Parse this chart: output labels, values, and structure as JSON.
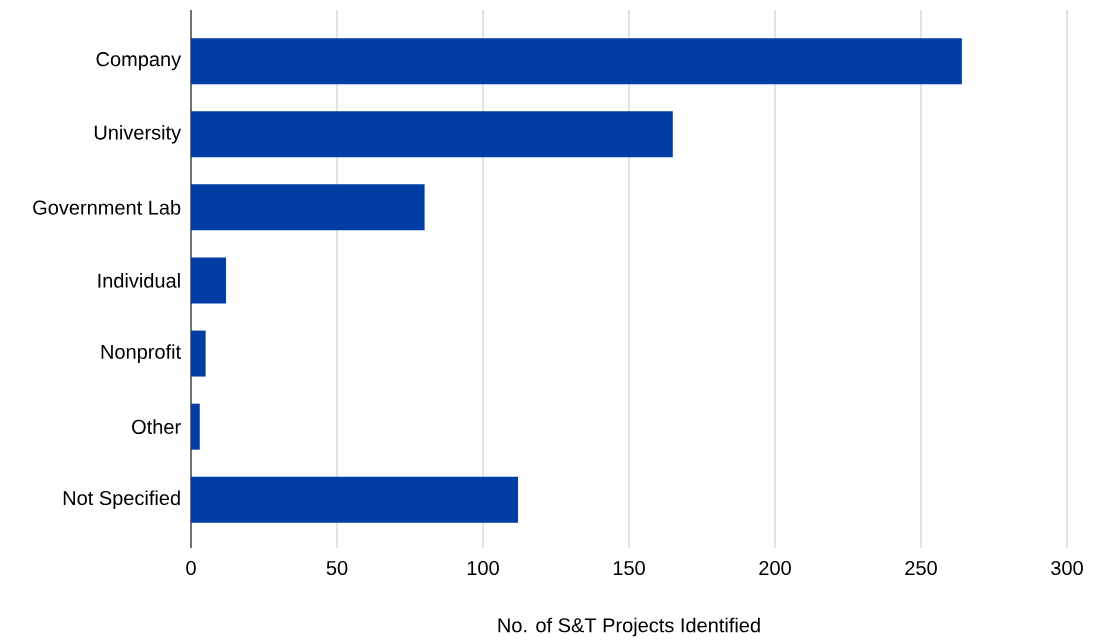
{
  "chart_data": {
    "type": "bar",
    "orientation": "horizontal",
    "xlabel": "No. of S&T Projects Identified",
    "categories": [
      "Company",
      "University",
      "Government Lab",
      "Individual",
      "Nonprofit",
      "Other",
      "Not Specified"
    ],
    "values": [
      264,
      165,
      80,
      12,
      5,
      3,
      112
    ],
    "color": "#003da5",
    "xlim": [
      0,
      300
    ],
    "xticks": [
      0,
      50,
      100,
      150,
      200,
      250,
      300
    ],
    "grid": "x"
  }
}
